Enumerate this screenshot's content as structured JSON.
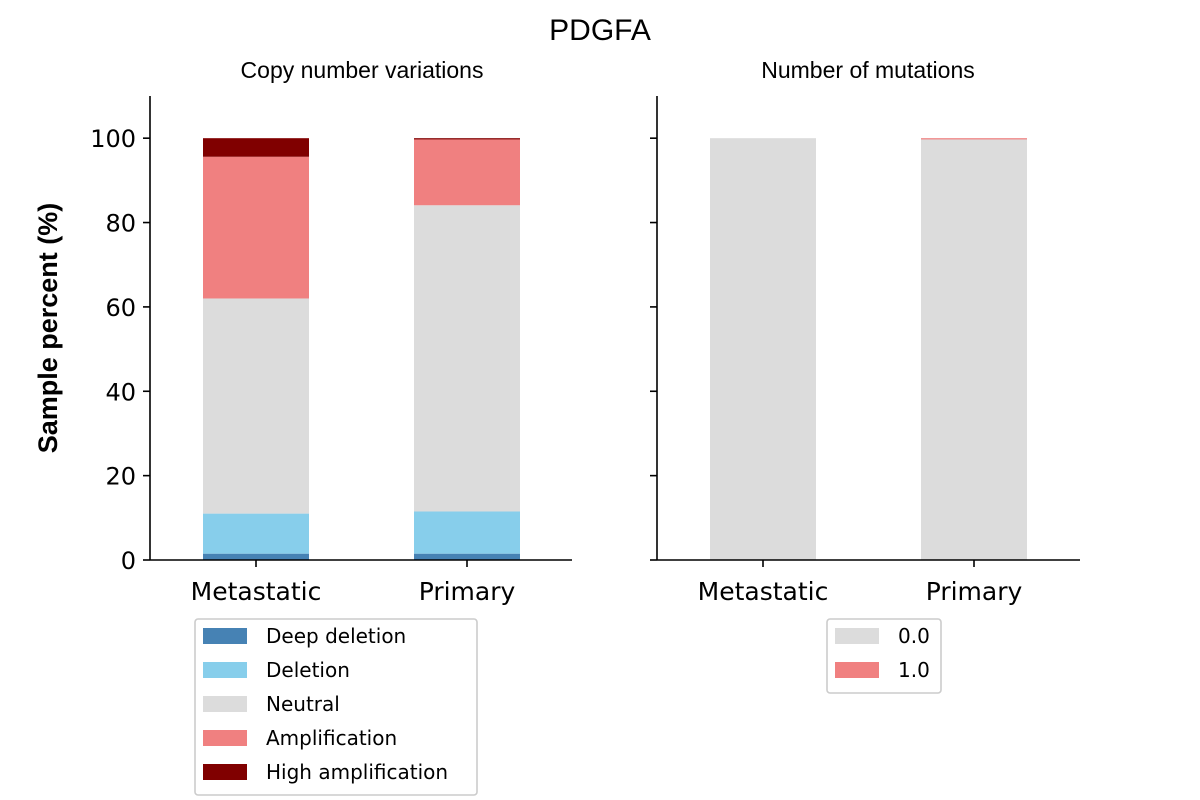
{
  "figure": {
    "title": "PDGFA",
    "ylabel": "Sample percent (%)"
  },
  "chart_data": [
    {
      "type": "bar",
      "stacked": true,
      "title": "Copy number variations",
      "xlabel": "",
      "ylabel": "Sample percent (%)",
      "categories": [
        "Metastatic",
        "Primary"
      ],
      "ylim": [
        0,
        110
      ],
      "yticks": [
        0,
        20,
        40,
        60,
        80,
        100
      ],
      "series": [
        {
          "name": "Deep deletion",
          "color": "#4682b4",
          "values": [
            1.5,
            1.5
          ]
        },
        {
          "name": "Deletion",
          "color": "#87ceeb",
          "values": [
            9.5,
            10.0
          ]
        },
        {
          "name": "Neutral",
          "color": "#dcdcdc",
          "values": [
            51.0,
            72.6
          ]
        },
        {
          "name": "Amplification",
          "color": "#f08080",
          "values": [
            33.6,
            15.6
          ]
        },
        {
          "name": "High amplification",
          "color": "#800000",
          "values": [
            4.4,
            0.3
          ]
        }
      ],
      "legend": "below"
    },
    {
      "type": "bar",
      "stacked": true,
      "title": "Number of mutations",
      "xlabel": "",
      "categories": [
        "Metastatic",
        "Primary"
      ],
      "ylim": [
        0,
        110
      ],
      "yticks": [
        0,
        20,
        40,
        60,
        80,
        100
      ],
      "show_ytick_labels": false,
      "series": [
        {
          "name": "0.0",
          "color": "#dcdcdc",
          "values": [
            100.0,
            99.7
          ]
        },
        {
          "name": "1.0",
          "color": "#f08080",
          "values": [
            0.0,
            0.3
          ]
        }
      ],
      "legend": "below"
    }
  ]
}
